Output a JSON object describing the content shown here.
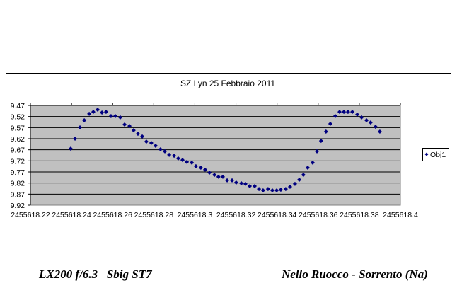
{
  "chart_data": {
    "type": "scatter",
    "title": "SZ Lyn 25 Febbraio 2011",
    "xlabel": "",
    "ylabel": "",
    "xlim": [
      2455618.22,
      2455618.4
    ],
    "ylim": [
      9.92,
      9.47
    ],
    "y_reversed": true,
    "x_ticks": [
      "2455618.22",
      "2455618.24",
      "2455618.26",
      "2455618.28",
      "2455618.3",
      "2455618.32",
      "2455618.34",
      "2455618.36",
      "2455618.38",
      "2455618.4"
    ],
    "y_ticks": [
      "9.47",
      "9.52",
      "9.57",
      "9.62",
      "9.67",
      "9.72",
      "9.77",
      "9.82",
      "9.87",
      "9.92"
    ],
    "grid": true,
    "legend": {
      "position": "right",
      "entries": [
        "Obj1"
      ]
    },
    "colors": {
      "series": "#000080",
      "plot_bg": "#c0c0c0"
    },
    "series": [
      {
        "name": "Obj1",
        "x_offset_base": 2455618,
        "x": [
          0.2396,
          0.2417,
          0.2441,
          0.2462,
          0.2486,
          0.2506,
          0.2527,
          0.2548,
          0.2568,
          0.2592,
          0.2613,
          0.2637,
          0.2658,
          0.2682,
          0.2702,
          0.2723,
          0.2744,
          0.2764,
          0.2788,
          0.2809,
          0.2833,
          0.2854,
          0.2875,
          0.2899,
          0.2919,
          0.294,
          0.2961,
          0.2985,
          0.3005,
          0.3029,
          0.305,
          0.3071,
          0.3095,
          0.3115,
          0.3136,
          0.3157,
          0.3181,
          0.3201,
          0.3226,
          0.3246,
          0.3267,
          0.3291,
          0.3312,
          0.3332,
          0.3356,
          0.3377,
          0.3398,
          0.3418,
          0.3442,
          0.3463,
          0.3487,
          0.3508,
          0.3528,
          0.3549,
          0.3573,
          0.3594,
          0.3614,
          0.3638,
          0.3659,
          0.3683,
          0.3704,
          0.3725,
          0.3745,
          0.3766,
          0.379,
          0.3811,
          0.3835,
          0.3855,
          0.3879,
          0.39
        ],
        "y": [
          9.665,
          9.62,
          9.569,
          9.537,
          9.508,
          9.499,
          9.489,
          9.502,
          9.499,
          9.518,
          9.518,
          9.524,
          9.556,
          9.563,
          9.582,
          9.598,
          9.61,
          9.633,
          9.639,
          9.652,
          9.668,
          9.677,
          9.693,
          9.697,
          9.709,
          9.716,
          9.725,
          9.728,
          9.744,
          9.751,
          9.76,
          9.773,
          9.783,
          9.792,
          9.792,
          9.808,
          9.808,
          9.818,
          9.821,
          9.824,
          9.834,
          9.834,
          9.847,
          9.853,
          9.847,
          9.853,
          9.853,
          9.85,
          9.847,
          9.837,
          9.824,
          9.805,
          9.783,
          9.751,
          9.728,
          9.677,
          9.63,
          9.588,
          9.553,
          9.518,
          9.499,
          9.499,
          9.499,
          9.499,
          9.511,
          9.524,
          9.537,
          9.547,
          9.566,
          9.588
        ]
      }
    ]
  },
  "footer": {
    "left": "LX200 f/6.3   Sbig ST7",
    "right": "Nello Ruocco - Sorrento (Na)"
  }
}
